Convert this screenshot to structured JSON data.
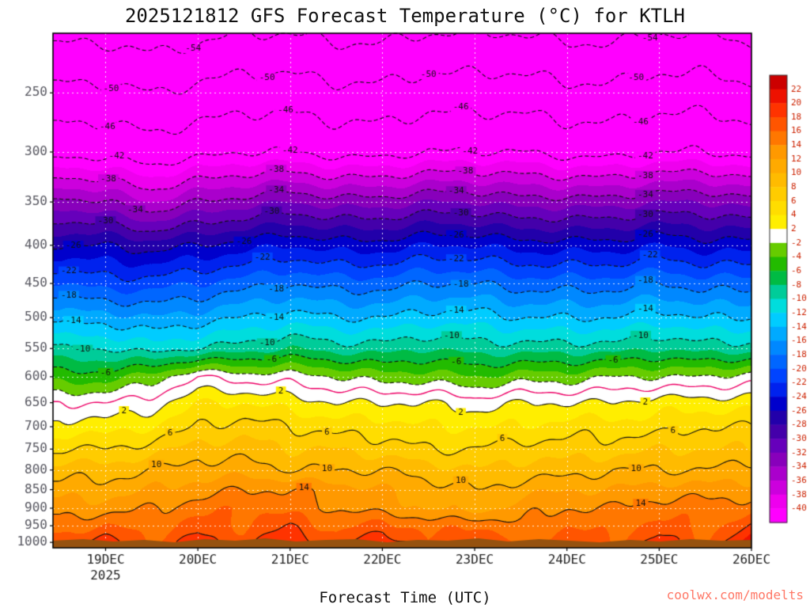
{
  "page": {
    "watermark": "coolwx.com/modelts"
  },
  "chart_data": {
    "type": "heatmap",
    "title": "2025121812 GFS Forecast Temperature (°C) for KTLH",
    "xlabel": "Forecast Time (UTC)",
    "ylabel": "Pressure (hPa)",
    "p_top": 208,
    "p_bot": 1017,
    "t_min": -0.57,
    "t_max": 7.0,
    "x_ticks": [
      {
        "label": "19DEC",
        "t": 0
      },
      {
        "label": "20DEC",
        "t": 1
      },
      {
        "label": "21DEC",
        "t": 2
      },
      {
        "label": "22DEC",
        "t": 3
      },
      {
        "label": "23DEC",
        "t": 4
      },
      {
        "label": "24DEC",
        "t": 5
      },
      {
        "label": "25DEC",
        "t": 6
      },
      {
        "label": "26DEC",
        "t": 7
      }
    ],
    "year_label": {
      "text": "2025",
      "t": 0
    },
    "y_ticks": [
      250,
      300,
      350,
      400,
      450,
      500,
      550,
      600,
      650,
      700,
      750,
      800,
      850,
      900,
      950,
      1000
    ],
    "grid": {
      "times": [
        -0.5,
        0,
        0.5,
        1,
        1.5,
        2,
        2.5,
        3,
        3.5,
        4,
        4.5,
        5,
        5.5,
        6,
        6.5,
        7
      ],
      "levels": [
        208,
        250,
        300,
        350,
        400,
        450,
        500,
        550,
        600,
        650,
        700,
        750,
        800,
        850,
        900,
        950,
        1000
      ],
      "temps": [
        [
          -55,
          -55,
          -56,
          -55,
          -54,
          -54,
          -55,
          -55,
          -54,
          -54,
          -54,
          -55,
          -55,
          -54,
          -54,
          -55
        ],
        [
          -49,
          -49,
          -50,
          -49,
          -48,
          -48,
          -49,
          -49,
          -48,
          -48,
          -48,
          -49,
          -49,
          -48,
          -48,
          -49
        ],
        [
          -43,
          -43,
          -44,
          -43,
          -42,
          -42,
          -43,
          -43,
          -42,
          -42,
          -42,
          -43,
          -43,
          -42,
          -42,
          -43
        ],
        [
          -33,
          -34,
          -36,
          -34,
          -33,
          -32,
          -33,
          -33,
          -32,
          -32,
          -33,
          -33,
          -33,
          -32,
          -32,
          -33
        ],
        [
          -26,
          -26,
          -27,
          -26,
          -25,
          -24,
          -25,
          -25,
          -24,
          -24,
          -25,
          -25,
          -25,
          -24,
          -25,
          -25
        ],
        [
          -20,
          -21,
          -21,
          -20,
          -19,
          -18,
          -19,
          -19,
          -18,
          -18,
          -19,
          -19,
          -19,
          -18,
          -19,
          -19
        ],
        [
          -15,
          -15,
          -16,
          -15,
          -14,
          -13,
          -14,
          -14,
          -13,
          -13,
          -14,
          -14,
          -14,
          -13,
          -14,
          -14
        ],
        [
          -10,
          -10,
          -11,
          -10,
          -9,
          -8,
          -9,
          -9,
          -8,
          -9,
          -9,
          -9,
          -9,
          -8,
          -9,
          -9
        ],
        [
          -5,
          -5,
          -3,
          0,
          -1,
          -1,
          -2,
          -3,
          -3,
          -4,
          -3,
          -3,
          -2,
          -2,
          -2,
          -1
        ],
        [
          0,
          0,
          1,
          4,
          4,
          3,
          2,
          2,
          2,
          1,
          2,
          2,
          2,
          3,
          3,
          3
        ],
        [
          3,
          3,
          4,
          6,
          7,
          6,
          5,
          5,
          4,
          4,
          4,
          5,
          5,
          5,
          6,
          6
        ],
        [
          6,
          6,
          7,
          9,
          9,
          8,
          8,
          7,
          6,
          6,
          7,
          7,
          7,
          8,
          8,
          8
        ],
        [
          9,
          9,
          10,
          11,
          11,
          10,
          10,
          10,
          9,
          8,
          9,
          9,
          10,
          10,
          10,
          11
        ],
        [
          11,
          11,
          12,
          13,
          14,
          14,
          13,
          12,
          11,
          10,
          11,
          12,
          12,
          13,
          13,
          13
        ],
        [
          13,
          13,
          14,
          15,
          16,
          15,
          14,
          13,
          12,
          11,
          13,
          14,
          14,
          15,
          15,
          15
        ],
        [
          15,
          16,
          15,
          17,
          16,
          18,
          15,
          17,
          15,
          16,
          14,
          16,
          15,
          17,
          15,
          18
        ],
        [
          17,
          19,
          16,
          19,
          17,
          20,
          17,
          20,
          16,
          19,
          15,
          18,
          16,
          19,
          16,
          21
        ]
      ]
    },
    "colormap": {
      "thresholds": [
        -40,
        -38,
        -36,
        -34,
        -32,
        -30,
        -28,
        -26,
        -24,
        -22,
        -20,
        -18,
        -16,
        -14,
        -12,
        -10,
        -8,
        -6,
        -4,
        -2,
        2,
        4,
        6,
        8,
        10,
        12,
        14,
        16,
        18,
        20,
        22
      ],
      "colors": [
        "#ff00ff",
        "#ee00ee",
        "#cc00dd",
        "#aa00cc",
        "#8800bb",
        "#6600bb",
        "#4400aa",
        "#2200aa",
        "#0000cc",
        "#0022ee",
        "#0044ff",
        "#0066ff",
        "#0088ff",
        "#00aaff",
        "#00ccff",
        "#00dddd",
        "#00cc99",
        "#00bb44",
        "#22bb00",
        "#66cc00",
        "#ffffff",
        "#ffee00",
        "#ffdd00",
        "#ffcc00",
        "#ffbb00",
        "#ffaa00",
        "#ff9900",
        "#ff7700",
        "#ff5500",
        "#ff3300",
        "#ee1100",
        "#cc0000"
      ]
    },
    "colorbar": {
      "tick_labels": [
        22,
        20,
        18,
        16,
        14,
        12,
        10,
        8,
        6,
        4,
        2,
        -2,
        -4,
        -6,
        -8,
        -10,
        -12,
        -14,
        -16,
        -18,
        -20,
        -22,
        -24,
        -26,
        -28,
        -30,
        -32,
        -34,
        -36,
        -38,
        -40
      ]
    },
    "contours": {
      "levels": [
        -54,
        -50,
        -46,
        -42,
        -38,
        -34,
        -30,
        -26,
        -22,
        -18,
        -14,
        -10,
        -6,
        -2,
        0,
        2,
        6,
        10,
        14,
        18
      ],
      "line_color": "#111111",
      "zero_line_color": "#ee0066",
      "negative_dashed": true
    },
    "contour_labels": [
      {
        "v": -54,
        "t": 0.95
      },
      {
        "v": -54,
        "t": 5.9
      },
      {
        "v": -50,
        "t": 0.06
      },
      {
        "v": -50,
        "t": 1.75
      },
      {
        "v": -50,
        "t": 3.5
      },
      {
        "v": -50,
        "t": 5.75
      },
      {
        "v": -46,
        "t": 0.02
      },
      {
        "v": -46,
        "t": 1.95
      },
      {
        "v": -46,
        "t": 3.85
      },
      {
        "v": -46,
        "t": 5.8
      },
      {
        "v": -42,
        "t": 0.12
      },
      {
        "v": -42,
        "t": 2.0
      },
      {
        "v": -42,
        "t": 3.95
      },
      {
        "v": -42,
        "t": 5.85
      },
      {
        "v": -38,
        "t": 0.03
      },
      {
        "v": -38,
        "t": 1.85
      },
      {
        "v": -38,
        "t": 3.9
      },
      {
        "v": -38,
        "t": 5.85
      },
      {
        "v": -34,
        "t": 0.32
      },
      {
        "v": -34,
        "t": 1.85
      },
      {
        "v": -34,
        "t": 3.8
      },
      {
        "v": -34,
        "t": 5.85
      },
      {
        "v": -30,
        "t": 0.0
      },
      {
        "v": -30,
        "t": 1.8
      },
      {
        "v": -30,
        "t": 3.85
      },
      {
        "v": -30,
        "t": 5.85
      },
      {
        "v": -26,
        "t": -0.35
      },
      {
        "v": -26,
        "t": 1.5
      },
      {
        "v": -26,
        "t": 3.8
      },
      {
        "v": -26,
        "t": 5.85
      },
      {
        "v": -22,
        "t": -0.4
      },
      {
        "v": -22,
        "t": 1.7
      },
      {
        "v": -22,
        "t": 3.8
      },
      {
        "v": -22,
        "t": 5.9
      },
      {
        "v": -18,
        "t": -0.4
      },
      {
        "v": -18,
        "t": 1.85
      },
      {
        "v": -18,
        "t": 3.85
      },
      {
        "v": -18,
        "t": 5.85
      },
      {
        "v": -14,
        "t": -0.35
      },
      {
        "v": -14,
        "t": 1.85
      },
      {
        "v": -14,
        "t": 3.8
      },
      {
        "v": -14,
        "t": 5.85
      },
      {
        "v": -10,
        "t": -0.25
      },
      {
        "v": -10,
        "t": 1.75
      },
      {
        "v": -10,
        "t": 3.75
      },
      {
        "v": -10,
        "t": 5.8
      },
      {
        "v": -6,
        "t": 0.0
      },
      {
        "v": -6,
        "t": 1.8
      },
      {
        "v": -6,
        "t": 3.8
      },
      {
        "v": -6,
        "t": 5.5
      },
      {
        "v": 2,
        "t": 0.2
      },
      {
        "v": 2,
        "t": 1.9
      },
      {
        "v": 2,
        "t": 3.85
      },
      {
        "v": 2,
        "t": 5.85
      },
      {
        "v": 6,
        "t": 0.7
      },
      {
        "v": 6,
        "t": 2.4
      },
      {
        "v": 6,
        "t": 4.3
      },
      {
        "v": 6,
        "t": 6.15
      },
      {
        "v": 10,
        "t": 0.55
      },
      {
        "v": 10,
        "t": 2.4
      },
      {
        "v": 10,
        "t": 3.85
      },
      {
        "v": 10,
        "t": 5.75
      },
      {
        "v": 14,
        "t": 2.15
      },
      {
        "v": 14,
        "t": 5.8
      }
    ],
    "terrain_color": "#96520f",
    "terrain_top": [
      3,
      1,
      4,
      2,
      5,
      1,
      3,
      0,
      4,
      2,
      1,
      5,
      2,
      3,
      0,
      4,
      1,
      3,
      5,
      2,
      4,
      1,
      3,
      2
    ]
  }
}
